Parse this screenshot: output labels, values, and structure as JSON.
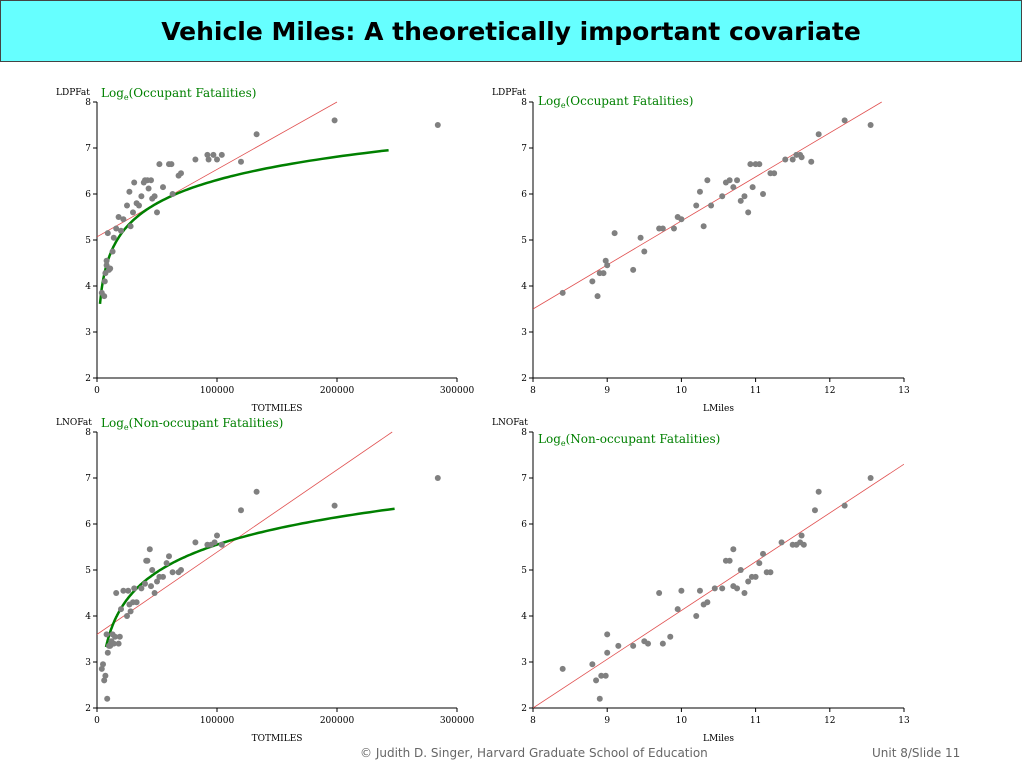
{
  "title": "Vehicle Miles: A theoretically important covariate",
  "footer": {
    "credit": "© Judith D. Singer, Harvard Graduate School of Education",
    "slide": "Unit 8/Slide 11"
  },
  "colors": {
    "title_bg": "#66ffff",
    "points": "#808080",
    "fit_line": "#e05050",
    "curve": "#008000",
    "annotation": "#008000"
  },
  "chart_data": [
    {
      "type": "scatter",
      "ylabel": "LDPFat",
      "xlabel": "TOTMILES",
      "annotation": {
        "base": "Log",
        "sub": "e",
        "rest": "(Occupant Fatalities)"
      },
      "xlim": [
        0,
        300000
      ],
      "ylim": [
        2,
        8
      ],
      "xticks": [
        0,
        100000,
        200000,
        300000
      ],
      "yticks": [
        2,
        3,
        4,
        5,
        6,
        7,
        8
      ],
      "line": [
        [
          0,
          5.07
        ],
        [
          200000,
          8.0
        ]
      ],
      "curve": {
        "a": -2.1,
        "b": 0.73,
        "x_from": 2500,
        "x_to": 243000
      },
      "points": [
        [
          4000,
          3.85
        ],
        [
          6000,
          3.78
        ],
        [
          6500,
          4.1
        ],
        [
          7000,
          4.28
        ],
        [
          8000,
          4.45
        ],
        [
          8000,
          4.55
        ],
        [
          9000,
          5.15
        ],
        [
          10000,
          4.35
        ],
        [
          11000,
          4.38
        ],
        [
          13000,
          4.75
        ],
        [
          14000,
          5.05
        ],
        [
          16000,
          5.25
        ],
        [
          18000,
          5.5
        ],
        [
          20000,
          5.2
        ],
        [
          22000,
          5.45
        ],
        [
          25000,
          5.75
        ],
        [
          27000,
          6.05
        ],
        [
          28000,
          5.3
        ],
        [
          30000,
          5.6
        ],
        [
          31000,
          6.25
        ],
        [
          33000,
          5.8
        ],
        [
          35000,
          5.75
        ],
        [
          37000,
          5.95
        ],
        [
          39000,
          6.25
        ],
        [
          40000,
          6.3
        ],
        [
          42000,
          6.3
        ],
        [
          43000,
          6.12
        ],
        [
          45000,
          6.3
        ],
        [
          46000,
          5.9
        ],
        [
          48000,
          5.95
        ],
        [
          50000,
          5.6
        ],
        [
          52000,
          6.65
        ],
        [
          55000,
          6.15
        ],
        [
          60000,
          6.65
        ],
        [
          62000,
          6.65
        ],
        [
          63000,
          6.0
        ],
        [
          68000,
          6.4
        ],
        [
          70000,
          6.45
        ],
        [
          82000,
          6.75
        ],
        [
          92000,
          6.85
        ],
        [
          93000,
          6.75
        ],
        [
          97000,
          6.85
        ],
        [
          100000,
          6.75
        ],
        [
          104000,
          6.85
        ],
        [
          120000,
          6.7
        ],
        [
          133000,
          7.3
        ],
        [
          198000,
          7.6
        ],
        [
          284000,
          7.5
        ]
      ]
    },
    {
      "type": "scatter",
      "ylabel": "LDPFat",
      "xlabel": "LMiles",
      "annotation": {
        "base": "Log",
        "sub": "e",
        "rest": "(Occupant Fatalities)"
      },
      "xlim": [
        8,
        13
      ],
      "ylim": [
        2,
        8
      ],
      "xticks": [
        8,
        9,
        10,
        11,
        12,
        13
      ],
      "yticks": [
        2,
        3,
        4,
        5,
        6,
        7,
        8
      ],
      "line": [
        [
          8,
          3.5
        ],
        [
          12.7,
          8.0
        ]
      ],
      "points": [
        [
          8.4,
          3.85
        ],
        [
          8.8,
          4.1
        ],
        [
          8.87,
          3.78
        ],
        [
          8.9,
          4.28
        ],
        [
          8.95,
          4.28
        ],
        [
          8.98,
          4.55
        ],
        [
          9.0,
          4.45
        ],
        [
          9.1,
          5.15
        ],
        [
          9.35,
          4.35
        ],
        [
          9.45,
          5.05
        ],
        [
          9.5,
          4.75
        ],
        [
          9.7,
          5.25
        ],
        [
          9.75,
          5.25
        ],
        [
          9.9,
          5.25
        ],
        [
          9.95,
          5.5
        ],
        [
          10.0,
          5.45
        ],
        [
          10.2,
          5.75
        ],
        [
          10.25,
          6.05
        ],
        [
          10.3,
          5.3
        ],
        [
          10.35,
          6.3
        ],
        [
          10.4,
          5.75
        ],
        [
          10.55,
          5.95
        ],
        [
          10.6,
          6.25
        ],
        [
          10.65,
          6.3
        ],
        [
          10.7,
          6.15
        ],
        [
          10.75,
          6.3
        ],
        [
          10.8,
          5.85
        ],
        [
          10.85,
          5.95
        ],
        [
          10.9,
          5.6
        ],
        [
          10.93,
          6.65
        ],
        [
          10.96,
          6.15
        ],
        [
          11.0,
          6.65
        ],
        [
          11.05,
          6.65
        ],
        [
          11.1,
          6.0
        ],
        [
          11.2,
          6.45
        ],
        [
          11.25,
          6.45
        ],
        [
          11.4,
          6.75
        ],
        [
          11.5,
          6.75
        ],
        [
          11.55,
          6.85
        ],
        [
          11.6,
          6.85
        ],
        [
          11.62,
          6.8
        ],
        [
          11.75,
          6.7
        ],
        [
          11.85,
          7.3
        ],
        [
          12.2,
          7.6
        ],
        [
          12.55,
          7.5
        ]
      ]
    },
    {
      "type": "scatter",
      "ylabel": "LNOFat",
      "xlabel": "TOTMILES",
      "annotation": {
        "base": "Log",
        "sub": "e",
        "rest": "(Non-occupant Fatalities)"
      },
      "xlim": [
        0,
        300000
      ],
      "ylim": [
        2,
        8
      ],
      "xticks": [
        0,
        100000,
        200000,
        300000
      ],
      "yticks": [
        2,
        3,
        4,
        5,
        6,
        7,
        8
      ],
      "line": [
        [
          0,
          3.6
        ],
        [
          246000,
          8.0
        ]
      ],
      "curve": {
        "a": -4.35,
        "b": 0.86,
        "x_from": 7500,
        "x_to": 248000
      },
      "points": [
        [
          4000,
          2.85
        ],
        [
          5000,
          2.95
        ],
        [
          6000,
          2.6
        ],
        [
          7000,
          2.7
        ],
        [
          8000,
          3.6
        ],
        [
          9000,
          3.2
        ],
        [
          8500,
          2.2
        ],
        [
          10000,
          3.35
        ],
        [
          11000,
          3.35
        ],
        [
          12000,
          3.45
        ],
        [
          13000,
          3.6
        ],
        [
          14000,
          3.4
        ],
        [
          15000,
          3.55
        ],
        [
          16000,
          4.5
        ],
        [
          18000,
          3.4
        ],
        [
          19000,
          3.55
        ],
        [
          20000,
          4.15
        ],
        [
          22000,
          4.55
        ],
        [
          25000,
          4.0
        ],
        [
          26000,
          4.55
        ],
        [
          27000,
          4.25
        ],
        [
          28000,
          4.1
        ],
        [
          30000,
          4.3
        ],
        [
          31000,
          4.6
        ],
        [
          33000,
          4.3
        ],
        [
          37000,
          4.6
        ],
        [
          40000,
          4.7
        ],
        [
          41000,
          5.2
        ],
        [
          42000,
          5.2
        ],
        [
          44000,
          5.45
        ],
        [
          45000,
          4.65
        ],
        [
          46000,
          5.0
        ],
        [
          48000,
          4.5
        ],
        [
          50000,
          4.75
        ],
        [
          52000,
          4.85
        ],
        [
          55000,
          4.85
        ],
        [
          58000,
          5.15
        ],
        [
          60000,
          5.3
        ],
        [
          63000,
          4.95
        ],
        [
          68000,
          4.95
        ],
        [
          70000,
          5.0
        ],
        [
          82000,
          5.6
        ],
        [
          92000,
          5.55
        ],
        [
          95000,
          5.55
        ],
        [
          98000,
          5.6
        ],
        [
          100000,
          5.75
        ],
        [
          104000,
          5.55
        ],
        [
          120000,
          6.3
        ],
        [
          133000,
          6.7
        ],
        [
          198000,
          6.4
        ],
        [
          284000,
          7.0
        ]
      ]
    },
    {
      "type": "scatter",
      "ylabel": "LNOFat",
      "xlabel": "LMiles",
      "annotation": {
        "base": "Log",
        "sub": "e",
        "rest": "(Non-occupant Fatalities)"
      },
      "xlim": [
        8,
        13
      ],
      "ylim": [
        2,
        8
      ],
      "xticks": [
        8,
        9,
        10,
        11,
        12,
        13
      ],
      "yticks": [
        2,
        3,
        4,
        5,
        6,
        7,
        8
      ],
      "line": [
        [
          8,
          2.0
        ],
        [
          13,
          7.3
        ]
      ],
      "points": [
        [
          8.4,
          2.85
        ],
        [
          8.8,
          2.95
        ],
        [
          8.85,
          2.6
        ],
        [
          8.9,
          2.2
        ],
        [
          8.92,
          2.7
        ],
        [
          8.98,
          2.7
        ],
        [
          9.0,
          3.6
        ],
        [
          9.0,
          3.2
        ],
        [
          9.15,
          3.35
        ],
        [
          9.35,
          3.35
        ],
        [
          9.5,
          3.45
        ],
        [
          9.55,
          3.4
        ],
        [
          9.7,
          4.5
        ],
        [
          9.75,
          3.4
        ],
        [
          9.85,
          3.55
        ],
        [
          9.95,
          4.15
        ],
        [
          10.0,
          4.55
        ],
        [
          10.2,
          4.0
        ],
        [
          10.25,
          4.55
        ],
        [
          10.3,
          4.25
        ],
        [
          10.35,
          4.3
        ],
        [
          10.45,
          4.6
        ],
        [
          10.55,
          4.6
        ],
        [
          10.6,
          5.2
        ],
        [
          10.65,
          5.2
        ],
        [
          10.7,
          4.65
        ],
        [
          10.7,
          5.45
        ],
        [
          10.75,
          4.6
        ],
        [
          10.8,
          5.0
        ],
        [
          10.85,
          4.5
        ],
        [
          10.9,
          4.75
        ],
        [
          10.95,
          4.85
        ],
        [
          11.0,
          4.85
        ],
        [
          11.05,
          5.15
        ],
        [
          11.1,
          5.35
        ],
        [
          11.15,
          4.95
        ],
        [
          11.2,
          4.95
        ],
        [
          11.35,
          5.6
        ],
        [
          11.5,
          5.55
        ],
        [
          11.55,
          5.55
        ],
        [
          11.6,
          5.6
        ],
        [
          11.62,
          5.75
        ],
        [
          11.65,
          5.55
        ],
        [
          11.8,
          6.3
        ],
        [
          11.85,
          6.7
        ],
        [
          12.2,
          6.4
        ],
        [
          12.55,
          7.0
        ]
      ]
    }
  ]
}
